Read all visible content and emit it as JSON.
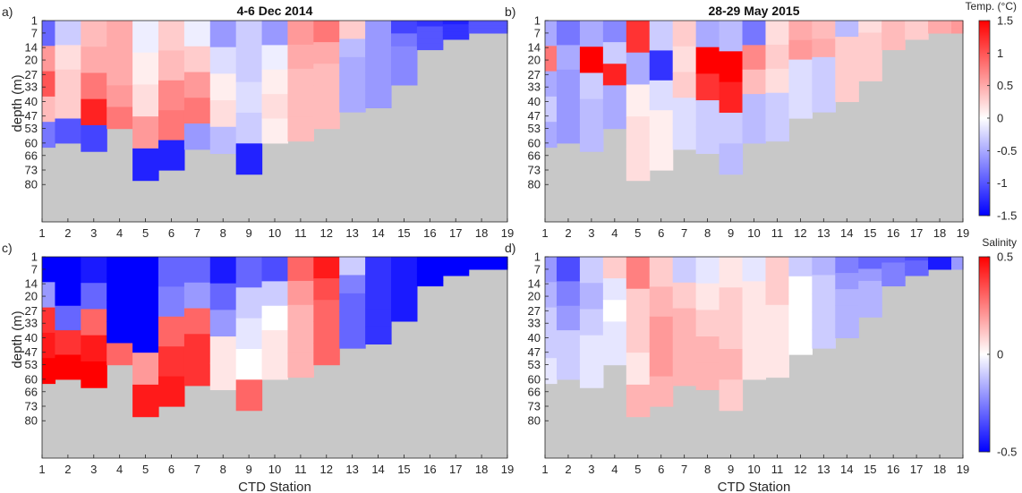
{
  "figure": {
    "xlabel": "CTD Station",
    "ylabel": "depth (m)",
    "colorbars": [
      {
        "title": "Temp. (°C)",
        "ticks": [
          "1.5",
          "1",
          "0.5",
          "0",
          "-0.5",
          "-1",
          "-1.5"
        ],
        "min": -1.5,
        "max": 1.5
      },
      {
        "title": "Salinity",
        "ticks": [
          "0.5",
          "0",
          "-0.5"
        ],
        "min": -0.5,
        "max": 0.5
      }
    ],
    "colors": {
      "negative": "#0000ff",
      "zero": "#ffffff",
      "positive": "#ff0000",
      "seafloor": "#c8c8c8"
    }
  },
  "chart_data": [
    {
      "type": "heatmap",
      "panel_label": "a)",
      "title": "4-6 Dec 2014",
      "variable": "temperature",
      "x": [
        1,
        2,
        3,
        4,
        5,
        6,
        7,
        8,
        9,
        10,
        11,
        12,
        13,
        14,
        15,
        16,
        17,
        18,
        19
      ],
      "y_ticks": [
        1,
        7,
        14,
        20,
        27,
        33,
        40,
        47,
        53,
        60,
        66,
        73,
        80
      ],
      "station_max_depth": [
        62,
        60,
        64,
        53,
        78,
        73,
        63,
        65,
        75,
        60,
        59,
        53,
        45,
        43,
        32,
        15,
        10,
        7,
        7
      ],
      "values": [
        [
          -0.9,
          0.6,
          1.0,
          0.4,
          -0.8
        ],
        [
          -0.3,
          0.2,
          0.3,
          0.3,
          -1.0
        ],
        [
          0.4,
          0.5,
          0.8,
          1.3,
          -1.1
        ],
        [
          0.5,
          0.5,
          0.5,
          0.6,
          0.8
        ],
        [
          -0.1,
          0.1,
          0.2,
          0.6,
          -1.3
        ],
        [
          0.3,
          0.4,
          0.7,
          0.8,
          -1.3
        ],
        [
          -0.1,
          0.3,
          0.6,
          0.8,
          -0.6
        ],
        [
          -0.6,
          -0.2,
          0.1,
          0.2,
          -0.4
        ],
        [
          -0.3,
          -0.3,
          -0.2,
          -0.3,
          -1.3
        ],
        [
          -0.6,
          -0.1,
          0.1,
          0.2,
          0.1
        ],
        [
          0.6,
          0.5,
          0.4,
          0.4,
          0.4
        ],
        [
          0.8,
          0.5,
          0.4,
          0.4,
          0.4
        ],
        [
          0.3,
          -0.4,
          -0.5,
          -0.5,
          -0.5
        ],
        [
          -0.6,
          -0.6,
          -0.6,
          -0.6,
          -0.6
        ],
        [
          -1.1,
          -0.8,
          -0.7,
          -0.7,
          -0.7
        ],
        [
          -1.2,
          -1.0,
          -1.0,
          -1.0,
          -1.0
        ],
        [
          -1.3,
          -1.2,
          -1.2,
          -1.2,
          -1.2
        ],
        [
          -1.0,
          -1.0,
          -1.0,
          -1.0,
          -1.0
        ],
        [
          -1.0,
          -1.0,
          -1.0,
          -1.0,
          -1.0
        ]
      ]
    },
    {
      "type": "heatmap",
      "panel_label": "b)",
      "title": "28-29 May 2015",
      "variable": "temperature",
      "x": [
        1,
        2,
        3,
        4,
        5,
        6,
        7,
        8,
        9,
        10,
        11,
        12,
        13,
        14,
        15,
        16,
        17,
        18,
        19
      ],
      "y_ticks": [
        1,
        7,
        14,
        20,
        27,
        33,
        40,
        47,
        53,
        60,
        66,
        73,
        80
      ],
      "station_max_depth": [
        62,
        60,
        64,
        53,
        78,
        73,
        63,
        65,
        75,
        60,
        59,
        48,
        45,
        40,
        30,
        15,
        10,
        7,
        7
      ],
      "values": [
        [
          -0.5,
          0.8,
          -0.5,
          -0.3,
          -0.5
        ],
        [
          -0.8,
          -0.5,
          -0.6,
          -0.6,
          -0.6
        ],
        [
          -0.5,
          1.5,
          -0.3,
          -0.4,
          -0.4
        ],
        [
          -0.7,
          -0.3,
          1.3,
          -0.5,
          -0.5
        ],
        [
          1.2,
          -0.5,
          0.1,
          0.2,
          0.2
        ],
        [
          -0.3,
          -1.2,
          -0.2,
          0.1,
          0.1
        ],
        [
          0.3,
          0.2,
          0.3,
          -0.2,
          -0.2
        ],
        [
          -0.5,
          1.6,
          1.2,
          -0.3,
          -0.3
        ],
        [
          -0.4,
          1.5,
          1.3,
          -0.3,
          -0.4
        ],
        [
          -0.8,
          0.7,
          0.4,
          -0.4,
          -0.4
        ],
        [
          0.2,
          0.3,
          0.2,
          -0.3,
          -0.3
        ],
        [
          0.5,
          0.6,
          -0.2,
          -0.2,
          -0.2
        ],
        [
          0.4,
          0.5,
          -0.3,
          -0.3,
          -0.3
        ],
        [
          -0.4,
          0.3,
          0.3,
          0.3,
          0.3
        ],
        [
          0.2,
          0.3,
          0.3,
          0.3,
          0.3
        ],
        [
          0.4,
          0.4,
          0.4,
          0.4,
          0.4
        ],
        [
          0.3,
          0.3,
          0.3,
          0.3,
          0.3
        ],
        [
          0.5,
          0.5,
          0.5,
          0.5,
          0.5
        ],
        [
          0.6,
          0.6,
          0.6,
          0.6,
          0.6
        ]
      ]
    },
    {
      "type": "heatmap",
      "panel_label": "c)",
      "title": "",
      "variable": "salinity",
      "x": [
        1,
        2,
        3,
        4,
        5,
        6,
        7,
        8,
        9,
        10,
        11,
        12,
        13,
        14,
        15,
        16,
        17,
        18,
        19
      ],
      "y_ticks": [
        1,
        7,
        14,
        20,
        27,
        33,
        40,
        47,
        53,
        60,
        66,
        73,
        80
      ],
      "station_max_depth": [
        62,
        60,
        64,
        53,
        78,
        73,
        63,
        65,
        75,
        60,
        59,
        53,
        45,
        43,
        32,
        15,
        10,
        7,
        7
      ],
      "values": [
        [
          -0.5,
          -0.2,
          0.4,
          0.45,
          0.5
        ],
        [
          -0.5,
          -0.5,
          -0.3,
          0.4,
          0.5
        ],
        [
          -0.45,
          -0.3,
          0.3,
          0.45,
          0.5
        ],
        [
          -0.5,
          -0.5,
          -0.5,
          -0.5,
          0.3
        ],
        [
          -0.5,
          -0.5,
          -0.5,
          0.2,
          0.45
        ],
        [
          -0.3,
          -0.25,
          0.3,
          0.4,
          0.45
        ],
        [
          -0.3,
          -0.2,
          0.3,
          0.4,
          0.4
        ],
        [
          -0.45,
          -0.3,
          -0.2,
          0.05,
          0.05
        ],
        [
          -0.3,
          -0.1,
          -0.05,
          0.0,
          0.3
        ],
        [
          -0.35,
          -0.1,
          0.0,
          0.05,
          0.05
        ],
        [
          0.3,
          0.2,
          0.15,
          0.15,
          0.15
        ],
        [
          0.45,
          0.35,
          0.3,
          0.3,
          0.3
        ],
        [
          -0.1,
          -0.25,
          -0.3,
          -0.3,
          -0.3
        ],
        [
          -0.4,
          -0.4,
          -0.4,
          -0.4,
          -0.4
        ],
        [
          -0.45,
          -0.45,
          -0.45,
          -0.45,
          -0.45
        ],
        [
          -0.5,
          -0.5,
          -0.5,
          -0.5,
          -0.5
        ],
        [
          -0.5,
          -0.5,
          -0.5,
          -0.5,
          -0.5
        ],
        [
          -0.5,
          -0.5,
          -0.5,
          -0.5,
          -0.5
        ],
        [
          -0.5,
          -0.5,
          -0.5,
          -0.5,
          -0.5
        ]
      ]
    },
    {
      "type": "heatmap",
      "panel_label": "d)",
      "title": "",
      "variable": "salinity",
      "x": [
        1,
        2,
        3,
        4,
        5,
        6,
        7,
        8,
        9,
        10,
        11,
        12,
        13,
        14,
        15,
        16,
        17,
        18,
        19
      ],
      "y_ticks": [
        1,
        7,
        14,
        20,
        27,
        33,
        40,
        47,
        53,
        60,
        66,
        73,
        80
      ],
      "station_max_depth": [
        62,
        60,
        64,
        53,
        78,
        73,
        63,
        65,
        75,
        60,
        59,
        48,
        45,
        40,
        30,
        15,
        10,
        7,
        7
      ],
      "values": [
        [
          -0.2,
          -0.15,
          -0.1,
          -0.1,
          -0.05
        ],
        [
          -0.35,
          -0.25,
          -0.2,
          -0.1,
          -0.1
        ],
        [
          -0.1,
          -0.15,
          -0.1,
          -0.05,
          -0.05
        ],
        [
          0.1,
          -0.05,
          0.0,
          -0.05,
          -0.05
        ],
        [
          0.25,
          0.1,
          0.1,
          0.05,
          0.15
        ],
        [
          0.1,
          0.15,
          0.2,
          0.2,
          0.15
        ],
        [
          -0.1,
          0.1,
          0.15,
          0.15,
          0.15
        ],
        [
          -0.05,
          0.05,
          0.1,
          0.15,
          0.15
        ],
        [
          0.05,
          0.1,
          0.1,
          0.15,
          0.1
        ],
        [
          -0.05,
          0.05,
          0.05,
          0.05,
          0.05
        ],
        [
          0.1,
          0.1,
          0.05,
          0.05,
          0.05
        ],
        [
          -0.1,
          0.0,
          0.0,
          0.0,
          0.0
        ],
        [
          -0.15,
          -0.1,
          -0.1,
          -0.1,
          -0.1
        ],
        [
          -0.25,
          -0.2,
          -0.15,
          -0.15,
          -0.15
        ],
        [
          -0.3,
          -0.2,
          -0.15,
          -0.15,
          -0.15
        ],
        [
          -0.3,
          -0.25,
          -0.25,
          -0.25,
          -0.25
        ],
        [
          -0.35,
          -0.3,
          -0.3,
          -0.3,
          -0.3
        ],
        [
          -0.45,
          -0.45,
          -0.45,
          -0.45,
          -0.45
        ],
        [
          -0.2,
          -0.2,
          -0.2,
          -0.2,
          -0.2
        ]
      ]
    }
  ]
}
